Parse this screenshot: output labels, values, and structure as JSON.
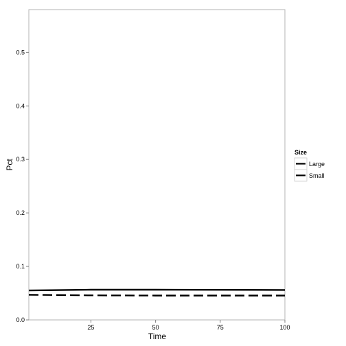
{
  "chart_data": {
    "type": "line",
    "title": "",
    "xlabel": "Time",
    "ylabel": "Pct",
    "xlim": [
      1,
      100
    ],
    "ylim": [
      0,
      0.58
    ],
    "x_ticks": [
      25,
      50,
      75,
      100
    ],
    "x_tick_labels": [
      "25",
      "50",
      "75",
      "100"
    ],
    "y_ticks": [
      0.0,
      0.1,
      0.2,
      0.3,
      0.4,
      0.5
    ],
    "y_tick_labels": [
      "0.0",
      "0.1",
      "0.2",
      "0.3",
      "0.4",
      "0.5"
    ],
    "grid": false,
    "legend": {
      "title": "Size",
      "placement": "right",
      "entries": [
        "Large",
        "Small"
      ]
    },
    "series": [
      {
        "name": "Large",
        "style": "dashed",
        "color": "#000000",
        "x": [
          1,
          25,
          50,
          75,
          100
        ],
        "y": [
          0.047,
          0.046,
          0.0455,
          0.0455,
          0.0455
        ]
      },
      {
        "name": "Small",
        "style": "solid",
        "color": "#000000",
        "x": [
          1,
          25,
          50,
          75,
          100
        ],
        "y": [
          0.055,
          0.0565,
          0.0565,
          0.0562,
          0.056
        ]
      }
    ]
  }
}
